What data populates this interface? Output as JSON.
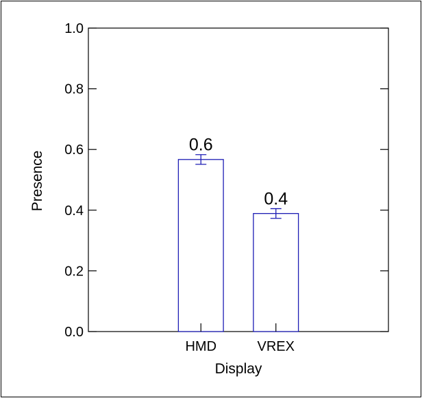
{
  "chart_data": {
    "type": "bar",
    "categories": [
      "HMD",
      "VREX"
    ],
    "values": [
      0.567,
      0.389
    ],
    "error": [
      0.016,
      0.016
    ],
    "data_labels": [
      "0.6",
      "0.4"
    ],
    "xlabel": "Display",
    "ylabel": "Presence",
    "ylim": [
      0.0,
      1.0
    ],
    "yticks": [
      "0.0",
      "0.2",
      "0.4",
      "0.6",
      "0.8",
      "1.0"
    ],
    "grid": false,
    "bar_color": "#1c1cb4"
  }
}
